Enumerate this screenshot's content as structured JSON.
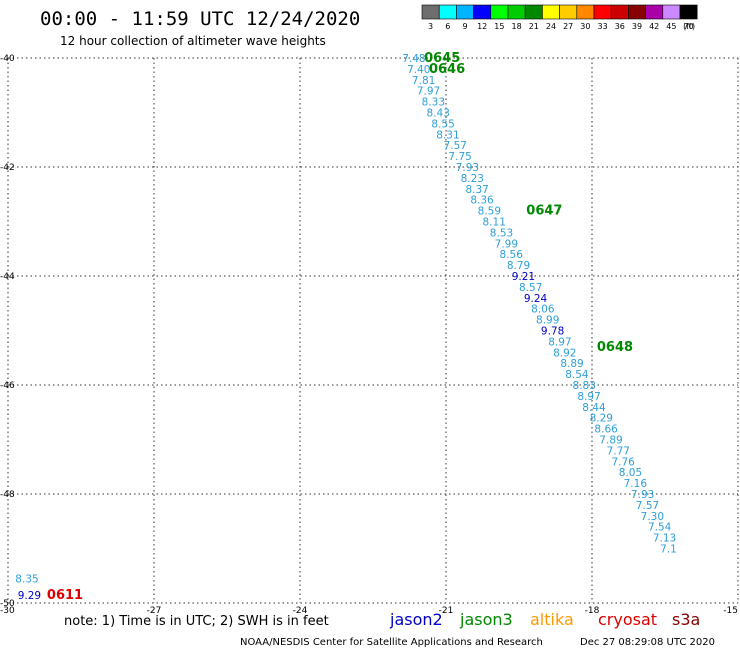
{
  "title": "00:00 - 11:59 UTC 12/24/2020",
  "subtitle": "12 hour collection of altimeter wave heights",
  "colorbar": {
    "unit": "(ft)",
    "bins": [
      {
        "label": "3",
        "color": "#6e6e6e"
      },
      {
        "label": "6",
        "color": "#00ffff"
      },
      {
        "label": "9",
        "color": "#00b4ff"
      },
      {
        "label": "12",
        "color": "#0000ff"
      },
      {
        "label": "15",
        "color": "#00ff00"
      },
      {
        "label": "18",
        "color": "#00cc00"
      },
      {
        "label": "21",
        "color": "#008800"
      },
      {
        "label": "24",
        "color": "#ffff00"
      },
      {
        "label": "27",
        "color": "#ffcc00"
      },
      {
        "label": "30",
        "color": "#ff8800"
      },
      {
        "label": "33",
        "color": "#ff0000"
      },
      {
        "label": "36",
        "color": "#cc0000"
      },
      {
        "label": "39",
        "color": "#880000"
      },
      {
        "label": "42",
        "color": "#aa00aa"
      },
      {
        "label": "45",
        "color": "#cc88ff"
      },
      {
        "label": "70",
        "color": "#000000"
      }
    ]
  },
  "note": "note: 1) Time is in UTC; 2) SWH is in feet",
  "satellites": [
    {
      "name": "jason2",
      "color": "#0000cc"
    },
    {
      "name": "jason3",
      "color": "#008800"
    },
    {
      "name": "altika",
      "color": "#ff9900"
    },
    {
      "name": "cryosat",
      "color": "#dd0000"
    },
    {
      "name": "s3a",
      "color": "#880000"
    }
  ],
  "credit": "NOAA/NESDIS Center for Satellite Applications and Research",
  "generated": "Dec 27 08:29:08 UTC 2020",
  "chart_data": {
    "type": "scatter",
    "x_ticks": [
      "-30",
      "-27",
      "-24",
      "-21",
      "-18",
      "-15"
    ],
    "y_ticks": [
      "-40",
      "-42",
      "-44",
      "-46",
      "-48",
      "-50"
    ],
    "xlim": [
      -30,
      -15
    ],
    "ylim": [
      -50,
      -40
    ],
    "grid": true,
    "track_points": [
      {
        "lon": -21.9,
        "lat": -40.0,
        "value": "7.48",
        "color": "#2e9fd8"
      },
      {
        "lon": -21.8,
        "lat": -40.2,
        "value": "7.40",
        "color": "#2e9fd8"
      },
      {
        "lon": -21.7,
        "lat": -40.4,
        "value": "7.81",
        "color": "#2e9fd8"
      },
      {
        "lon": -21.6,
        "lat": -40.6,
        "value": "7.97",
        "color": "#2e9fd8"
      },
      {
        "lon": -21.5,
        "lat": -40.8,
        "value": "8.33",
        "color": "#2e9fd8"
      },
      {
        "lon": -21.4,
        "lat": -41.0,
        "value": "8.43",
        "color": "#2e9fd8"
      },
      {
        "lon": -21.3,
        "lat": -41.2,
        "value": "8.55",
        "color": "#2e9fd8"
      },
      {
        "lon": -21.2,
        "lat": -41.4,
        "value": "8.31",
        "color": "#2e9fd8"
      },
      {
        "lon": -21.05,
        "lat": -41.6,
        "value": "7.57",
        "color": "#2e9fd8"
      },
      {
        "lon": -20.95,
        "lat": -41.8,
        "value": "7.75",
        "color": "#2e9fd8"
      },
      {
        "lon": -20.8,
        "lat": -42.0,
        "value": "7.93",
        "color": "#2e9fd8"
      },
      {
        "lon": -20.7,
        "lat": -42.2,
        "value": "8.23",
        "color": "#2e9fd8"
      },
      {
        "lon": -20.6,
        "lat": -42.4,
        "value": "8.37",
        "color": "#2e9fd8"
      },
      {
        "lon": -20.5,
        "lat": -42.6,
        "value": "8.36",
        "color": "#2e9fd8"
      },
      {
        "lon": -20.35,
        "lat": -42.8,
        "value": "8.59",
        "color": "#2e9fd8"
      },
      {
        "lon": -20.25,
        "lat": -43.0,
        "value": "8.11",
        "color": "#2e9fd8"
      },
      {
        "lon": -20.1,
        "lat": -43.2,
        "value": "8.53",
        "color": "#2e9fd8"
      },
      {
        "lon": -20.0,
        "lat": -43.4,
        "value": "7.99",
        "color": "#2e9fd8"
      },
      {
        "lon": -19.9,
        "lat": -43.6,
        "value": "8.56",
        "color": "#2e9fd8"
      },
      {
        "lon": -19.75,
        "lat": -43.8,
        "value": "8.79",
        "color": "#2e9fd8"
      },
      {
        "lon": -19.65,
        "lat": -44.0,
        "value": "9.21",
        "color": "#0000cc"
      },
      {
        "lon": -19.5,
        "lat": -44.2,
        "value": "8.57",
        "color": "#2e9fd8"
      },
      {
        "lon": -19.4,
        "lat": -44.4,
        "value": "9.24",
        "color": "#0000cc"
      },
      {
        "lon": -19.25,
        "lat": -44.6,
        "value": "8.06",
        "color": "#2e9fd8"
      },
      {
        "lon": -19.15,
        "lat": -44.8,
        "value": "8.99",
        "color": "#2e9fd8"
      },
      {
        "lon": -19.05,
        "lat": -45.0,
        "value": "9.78",
        "color": "#0000cc"
      },
      {
        "lon": -18.9,
        "lat": -45.2,
        "value": "8.97",
        "color": "#2e9fd8"
      },
      {
        "lon": -18.8,
        "lat": -45.4,
        "value": "8.92",
        "color": "#2e9fd8"
      },
      {
        "lon": -18.65,
        "lat": -45.6,
        "value": "8.89",
        "color": "#2e9fd8"
      },
      {
        "lon": -18.55,
        "lat": -45.8,
        "value": "8.54",
        "color": "#2e9fd8"
      },
      {
        "lon": -18.4,
        "lat": -46.0,
        "value": "8.83",
        "color": "#2e9fd8"
      },
      {
        "lon": -18.3,
        "lat": -46.2,
        "value": "8.97",
        "color": "#2e9fd8"
      },
      {
        "lon": -18.2,
        "lat": -46.4,
        "value": "8.44",
        "color": "#2e9fd8"
      },
      {
        "lon": -18.05,
        "lat": -46.6,
        "value": "8.29",
        "color": "#2e9fd8"
      },
      {
        "lon": -17.95,
        "lat": -46.8,
        "value": "8.66",
        "color": "#2e9fd8"
      },
      {
        "lon": -17.85,
        "lat": -47.0,
        "value": "7.89",
        "color": "#2e9fd8"
      },
      {
        "lon": -17.7,
        "lat": -47.2,
        "value": "7.77",
        "color": "#2e9fd8"
      },
      {
        "lon": -17.6,
        "lat": -47.4,
        "value": "7.76",
        "color": "#2e9fd8"
      },
      {
        "lon": -17.45,
        "lat": -47.6,
        "value": "8.05",
        "color": "#2e9fd8"
      },
      {
        "lon": -17.35,
        "lat": -47.8,
        "value": "7.16",
        "color": "#2e9fd8"
      },
      {
        "lon": -17.2,
        "lat": -48.0,
        "value": "7.93",
        "color": "#2e9fd8"
      },
      {
        "lon": -17.1,
        "lat": -48.2,
        "value": "7.57",
        "color": "#2e9fd8"
      },
      {
        "lon": -17.0,
        "lat": -48.4,
        "value": "7.30",
        "color": "#2e9fd8"
      },
      {
        "lon": -16.85,
        "lat": -48.6,
        "value": "7.54",
        "color": "#2e9fd8"
      },
      {
        "lon": -16.75,
        "lat": -48.8,
        "value": "7.13",
        "color": "#2e9fd8"
      },
      {
        "lon": -16.6,
        "lat": -49.0,
        "value": "7.1",
        "color": "#2e9fd8"
      },
      {
        "lon": -29.85,
        "lat": -49.55,
        "value": "8.35",
        "color": "#2e9fd8"
      },
      {
        "lon": -29.8,
        "lat": -49.85,
        "value": "9.29",
        "color": "#0000cc"
      }
    ],
    "time_labels": [
      {
        "lon": -21.45,
        "lat": -40.0,
        "text": "0645",
        "color": "#008800"
      },
      {
        "lon": -21.35,
        "lat": -40.2,
        "text": "0646",
        "color": "#008800"
      },
      {
        "lon": -19.35,
        "lat": -42.8,
        "text": "0647",
        "color": "#008800"
      },
      {
        "lon": -17.9,
        "lat": -45.3,
        "text": "0648",
        "color": "#008800"
      },
      {
        "lon": -29.2,
        "lat": -49.85,
        "text": "0611",
        "color": "#dd0000"
      }
    ]
  }
}
